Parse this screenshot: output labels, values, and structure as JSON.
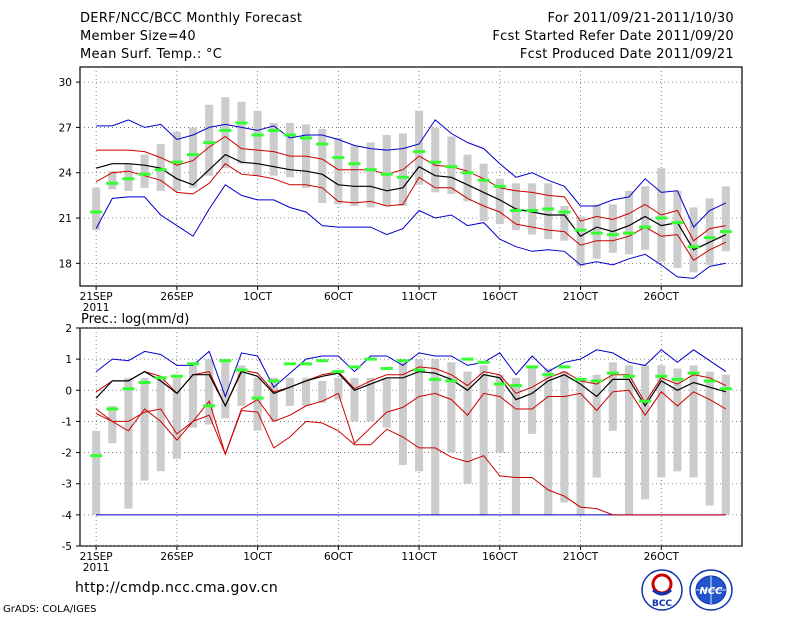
{
  "header": {
    "title": "DERF/NCC/BCC Monthly Forecast",
    "member_size": "Member Size=40",
    "variable": "Mean Surf. Temp.: °C",
    "period": "For 2011/09/21-2011/10/30",
    "fcst_started": "Fcst Started Refer Date 2011/09/20",
    "fcst_produced": "Fcst Produced Date 2011/09/21"
  },
  "footer": {
    "url": "http://cmdp.ncc.cma.gov.cn",
    "grads": "GrADS: COLA/IGES",
    "logo1_text": "BCC",
    "logo2_text": "NCC"
  },
  "colors": {
    "box": "#cccccc",
    "green": "#33ff33",
    "blue": "#0000cc",
    "red": "#cc0000",
    "black": "#000000",
    "grid": "#666666"
  },
  "chart_data": [
    {
      "type": "box-plume",
      "title": "Mean Surf. Temp.: °C",
      "x_tick_labels": [
        "21SEP",
        "26SEP",
        "1OCT",
        "6OCT",
        "11OCT",
        "16OCT",
        "21OCT",
        "26OCT"
      ],
      "x_tick_day_index": [
        0,
        5,
        10,
        15,
        20,
        25,
        30,
        35
      ],
      "x_year_label": "2011",
      "xlim": [
        -1,
        40
      ],
      "ylim": [
        16.5,
        31
      ],
      "y_ticks": [
        18,
        21,
        24,
        27,
        30
      ],
      "box_low": [
        20.2,
        22.9,
        22.8,
        23.0,
        22.8,
        22.8,
        23.0,
        23.8,
        24.3,
        24.6,
        23.8,
        23.8,
        23.7,
        23.0,
        22.0,
        21.9,
        21.8,
        21.7,
        21.8,
        21.8,
        23.2,
        22.7,
        22.6,
        22.1,
        20.8,
        20.6,
        20.2,
        19.9,
        19.6,
        19.5,
        17.8,
        18.3,
        18.7,
        18.6,
        18.9,
        18.1,
        17.7,
        17.4,
        17.9,
        18.8
      ],
      "box_high": [
        23.0,
        24.1,
        24.6,
        25.2,
        25.9,
        26.7,
        27.0,
        28.5,
        29.0,
        28.7,
        28.1,
        27.3,
        27.3,
        27.2,
        26.9,
        26.3,
        25.8,
        26.0,
        26.5,
        26.6,
        28.1,
        27.0,
        26.4,
        25.2,
        24.6,
        23.6,
        23.3,
        23.3,
        23.3,
        21.8,
        21.1,
        21.9,
        21.9,
        22.8,
        23.1,
        24.3,
        22.8,
        21.7,
        22.3,
        23.1
      ],
      "ensemble_mean": [
        21.4,
        23.3,
        23.6,
        23.9,
        24.2,
        24.7,
        25.2,
        26.0,
        26.8,
        27.3,
        26.5,
        26.8,
        26.5,
        26.3,
        25.9,
        25.0,
        24.6,
        24.2,
        23.9,
        23.7,
        25.4,
        24.7,
        24.4,
        24.0,
        23.5,
        23.1,
        21.5,
        21.5,
        21.6,
        21.4,
        20.2,
        20.0,
        19.9,
        20.0,
        20.4,
        21.0,
        20.7,
        19.1,
        19.7,
        20.1
      ],
      "max_line": [
        27.1,
        27.1,
        27.5,
        27.0,
        27.2,
        26.2,
        26.5,
        27.0,
        27.2,
        27.0,
        26.8,
        27.1,
        26.3,
        26.5,
        26.5,
        26.2,
        25.8,
        25.6,
        25.5,
        25.6,
        25.9,
        27.5,
        26.6,
        26.0,
        25.6,
        24.6,
        23.7,
        24.0,
        23.5,
        23.1,
        21.8,
        21.8,
        22.2,
        22.4,
        23.6,
        22.7,
        22.8,
        20.4,
        21.5,
        22.0
      ],
      "upper_line": [
        25.5,
        25.5,
        25.5,
        25.4,
        25.0,
        24.5,
        24.8,
        25.7,
        26.4,
        25.6,
        25.5,
        25.4,
        25.1,
        25.1,
        24.9,
        24.2,
        24.2,
        24.2,
        23.9,
        24.2,
        25.1,
        24.5,
        24.4,
        24.1,
        23.6,
        23.0,
        22.8,
        22.7,
        22.5,
        22.4,
        20.8,
        21.1,
        20.9,
        21.3,
        21.9,
        21.2,
        21.5,
        19.5,
        20.3,
        20.5
      ],
      "mean_line": [
        24.3,
        24.6,
        24.6,
        24.5,
        24.3,
        23.6,
        23.2,
        24.2,
        25.2,
        24.7,
        24.6,
        24.4,
        24.2,
        24.1,
        23.9,
        23.2,
        23.1,
        23.1,
        22.8,
        23.0,
        24.4,
        23.8,
        23.7,
        23.2,
        22.7,
        22.2,
        21.6,
        21.4,
        21.2,
        21.2,
        19.8,
        20.4,
        20.1,
        20.5,
        21.1,
        20.5,
        20.7,
        18.9,
        19.4,
        19.9
      ],
      "lower_line": [
        23.4,
        24.0,
        24.1,
        23.8,
        23.5,
        22.7,
        22.6,
        23.3,
        24.6,
        23.9,
        23.8,
        23.6,
        23.2,
        23.2,
        23.0,
        22.1,
        22.0,
        22.1,
        21.8,
        21.9,
        23.7,
        23.0,
        23.0,
        22.3,
        21.8,
        21.4,
        20.6,
        20.4,
        20.2,
        20.1,
        19.2,
        19.5,
        19.5,
        19.8,
        20.4,
        19.8,
        19.9,
        18.2,
        18.9,
        19.4
      ],
      "min_line": [
        20.3,
        22.3,
        22.4,
        22.4,
        21.2,
        20.5,
        19.8,
        21.6,
        23.2,
        22.5,
        22.2,
        22.2,
        21.7,
        21.4,
        20.5,
        20.4,
        20.4,
        20.4,
        19.9,
        20.3,
        21.5,
        21.0,
        21.2,
        20.5,
        20.7,
        19.6,
        19.1,
        18.8,
        18.9,
        18.8,
        17.9,
        18.1,
        17.9,
        18.3,
        18.6,
        17.9,
        17.1,
        17.0,
        17.8,
        18.0
      ]
    },
    {
      "type": "box-plume",
      "title": "Prec.: log(mm/d)",
      "x_tick_labels": [
        "21SEP",
        "26SEP",
        "1OCT",
        "6OCT",
        "11OCT",
        "16OCT",
        "21OCT",
        "26OCT"
      ],
      "x_tick_day_index": [
        0,
        5,
        10,
        15,
        20,
        25,
        30,
        35
      ],
      "x_year_label": "2011",
      "xlim": [
        -1,
        40
      ],
      "ylim": [
        -5,
        2
      ],
      "y_ticks": [
        -5,
        -4,
        -3,
        -2,
        -1,
        0,
        1,
        2
      ],
      "box_low": [
        -4.0,
        -1.7,
        -3.8,
        -2.9,
        -2.6,
        -2.2,
        -1.2,
        -1.1,
        -0.9,
        -0.5,
        -1.3,
        -1.0,
        -0.5,
        -0.5,
        -0.4,
        -0.3,
        -1.0,
        -1.0,
        -1.2,
        -2.4,
        -2.6,
        -4.0,
        -2.0,
        -3.0,
        -4.0,
        -2.0,
        -4.0,
        -1.4,
        -4.0,
        -3.6,
        -4.0,
        -2.8,
        -1.3,
        -4.0,
        -3.5,
        -2.8,
        -2.6,
        -2.8,
        -3.7,
        -4.0
      ],
      "box_high": [
        -1.3,
        -0.5,
        0.4,
        0.4,
        0.4,
        0.4,
        0.8,
        1.0,
        1.0,
        0.8,
        0.4,
        0.4,
        0.4,
        0.4,
        0.3,
        0.4,
        0.4,
        0.4,
        0.4,
        0.9,
        1.0,
        1.0,
        0.9,
        0.6,
        0.8,
        0.5,
        0.4,
        0.8,
        0.7,
        0.6,
        0.4,
        0.5,
        0.9,
        0.8,
        0.8,
        0.8,
        0.7,
        0.8,
        0.6,
        0.5
      ],
      "ensemble_mean": [
        -2.1,
        -0.6,
        0.05,
        0.25,
        0.4,
        0.45,
        0.85,
        -0.5,
        0.95,
        0.65,
        -0.25,
        0.3,
        0.85,
        0.85,
        0.95,
        0.6,
        0.75,
        1.0,
        0.7,
        0.95,
        0.65,
        0.35,
        0.3,
        1.0,
        0.9,
        0.2,
        0.15,
        0.75,
        0.5,
        0.75,
        0.35,
        0.3,
        0.55,
        0.45,
        -0.35,
        0.45,
        0.35,
        0.55,
        0.3,
        0.05
      ],
      "max_line": [
        0.6,
        1.0,
        0.95,
        1.25,
        1.15,
        0.8,
        0.8,
        1.25,
        -0.2,
        1.2,
        1.1,
        0.1,
        0.55,
        1.0,
        1.1,
        1.1,
        0.6,
        1.1,
        1.1,
        0.8,
        1.2,
        1.1,
        1.1,
        0.8,
        0.9,
        1.2,
        0.5,
        1.1,
        0.6,
        0.9,
        1.0,
        1.3,
        1.2,
        0.9,
        0.8,
        1.3,
        0.9,
        1.3,
        0.95,
        0.6
      ],
      "upper_line": [
        -0.05,
        0.3,
        0.3,
        0.6,
        0.45,
        -0.1,
        0.5,
        0.6,
        -0.5,
        0.65,
        0.55,
        -0.05,
        0.1,
        0.3,
        0.5,
        0.6,
        0.05,
        0.3,
        0.5,
        0.5,
        0.75,
        0.7,
        0.5,
        0.15,
        0.6,
        0.5,
        -0.1,
        0.1,
        0.4,
        0.6,
        0.3,
        0.2,
        0.5,
        0.5,
        -0.4,
        0.4,
        0.2,
        0.5,
        0.4,
        0.15
      ],
      "mean_line": [
        -0.25,
        0.3,
        0.3,
        0.6,
        0.3,
        -0.1,
        0.5,
        0.5,
        -0.5,
        0.6,
        0.45,
        -0.1,
        0.1,
        0.3,
        0.45,
        0.55,
        0.0,
        0.2,
        0.4,
        0.4,
        0.6,
        0.55,
        0.35,
        0.0,
        0.5,
        0.4,
        -0.3,
        -0.1,
        0.3,
        0.5,
        0.2,
        -0.2,
        0.35,
        0.35,
        -0.5,
        0.3,
        0.0,
        0.25,
        0.1,
        -0.05
      ],
      "lower_line": [
        -0.6,
        -1.0,
        -1.0,
        -0.7,
        -0.6,
        -1.4,
        -1.0,
        -0.35,
        -2.05,
        -0.6,
        -0.3,
        -1.0,
        -0.8,
        -0.5,
        -0.35,
        -0.1,
        -1.7,
        -1.2,
        -0.7,
        -0.55,
        -0.2,
        -0.1,
        -0.3,
        -0.8,
        -0.1,
        -0.2,
        -0.6,
        -0.6,
        -0.2,
        -0.2,
        -0.1,
        -0.65,
        -0.05,
        0.0,
        -0.8,
        -0.05,
        -0.5,
        -0.05,
        -0.3,
        -0.6
      ],
      "min_line": [
        -4.0,
        -4.0,
        -4.0,
        -4.0,
        -4.0,
        -4.0,
        -4.0,
        -4.0,
        -4.0,
        -4.0,
        -4.0,
        -4.0,
        -4.0,
        -4.0,
        -4.0,
        -4.0,
        -4.0,
        -4.0,
        -4.0,
        -4.0,
        -4.0,
        -4.0,
        -4.0,
        -4.0,
        -4.0,
        -4.0,
        -4.0,
        -4.0,
        -4.0,
        -4.0,
        -4.0,
        -4.0,
        -4.0,
        -4.0,
        -4.0,
        -4.0,
        -4.0,
        -4.0,
        -4.0,
        -4.0
      ],
      "min_line_2": [
        -0.75,
        -1.0,
        -1.3,
        -0.6,
        -1.0,
        -1.6,
        -1.0,
        -0.8,
        -2.05,
        -0.65,
        -0.7,
        -1.85,
        -1.5,
        -1.0,
        -1.05,
        -1.3,
        -1.75,
        -1.75,
        -1.25,
        -1.5,
        -1.85,
        -1.85,
        -2.15,
        -2.3,
        -2.1,
        -2.75,
        -2.8,
        -2.8,
        -3.2,
        -3.4,
        -3.75,
        -3.8,
        -4.0,
        -4.0,
        -4.0,
        -4.0,
        -4.0,
        -4.0,
        -4.0,
        -4.0
      ]
    }
  ]
}
